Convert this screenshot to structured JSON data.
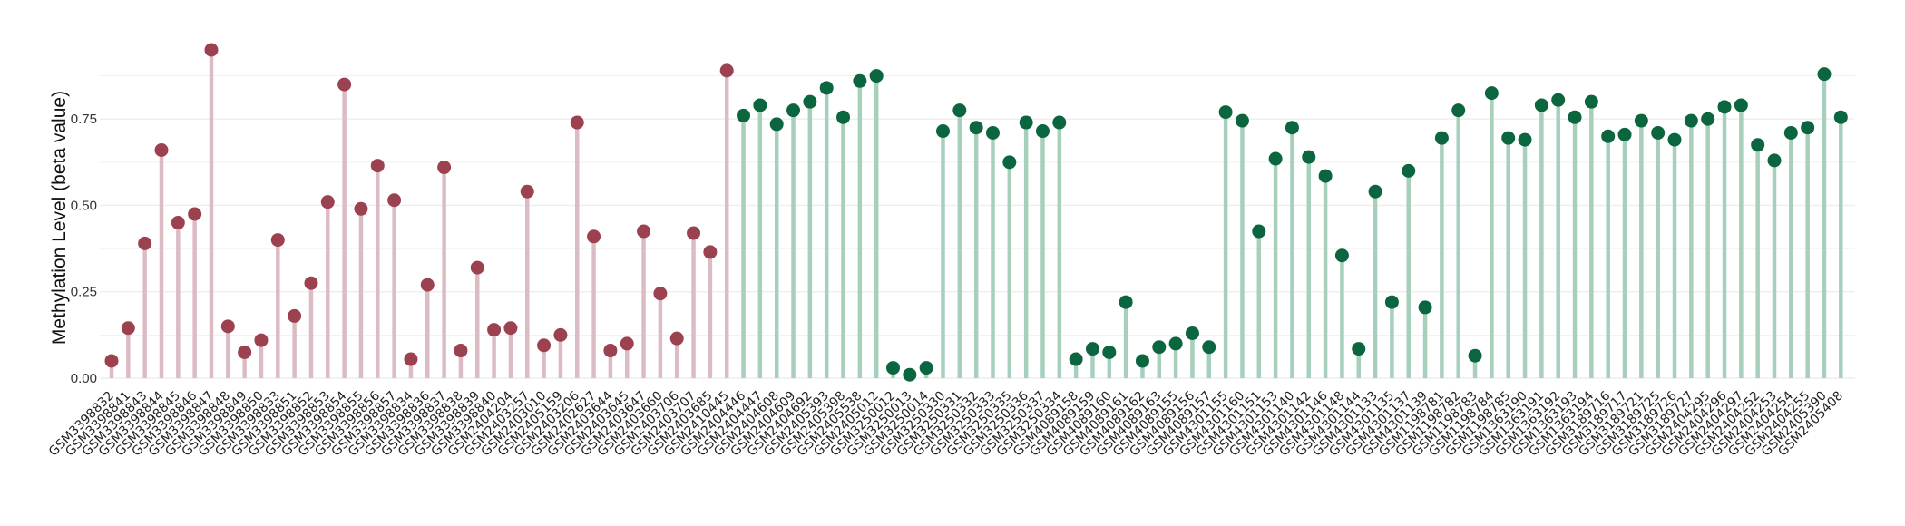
{
  "chart_data": {
    "type": "lollipop",
    "title": "",
    "xlabel": "",
    "ylabel": "Methylation Level (beta value)",
    "ylim": [
      0,
      0.95
    ],
    "yticks": [
      "0.00",
      "0.25",
      "0.50",
      "0.75"
    ],
    "grid": true,
    "colors": {
      "group1": "#9b4150",
      "group1_stem": "#dcbcc4",
      "group2": "#0b6640",
      "group2_stem": "#a6cfbc",
      "grid": "#eeeeee"
    },
    "points": [
      {
        "label": "GSM3398832",
        "value": 0.05,
        "group": 1
      },
      {
        "label": "GSM3398841",
        "value": 0.145,
        "group": 1
      },
      {
        "label": "GSM3398843",
        "value": 0.39,
        "group": 1
      },
      {
        "label": "GSM3398844",
        "value": 0.66,
        "group": 1
      },
      {
        "label": "GSM3398845",
        "value": 0.45,
        "group": 1
      },
      {
        "label": "GSM3398846",
        "value": 0.475,
        "group": 1
      },
      {
        "label": "GSM3398847",
        "value": 0.95,
        "group": 1
      },
      {
        "label": "GSM3398848",
        "value": 0.15,
        "group": 1
      },
      {
        "label": "GSM3398849",
        "value": 0.075,
        "group": 1
      },
      {
        "label": "GSM3398850",
        "value": 0.11,
        "group": 1
      },
      {
        "label": "GSM3398833",
        "value": 0.4,
        "group": 1
      },
      {
        "label": "GSM3398851",
        "value": 0.18,
        "group": 1
      },
      {
        "label": "GSM3398852",
        "value": 0.275,
        "group": 1
      },
      {
        "label": "GSM3398853",
        "value": 0.51,
        "group": 1
      },
      {
        "label": "GSM3398854",
        "value": 0.85,
        "group": 1
      },
      {
        "label": "GSM3398855",
        "value": 0.49,
        "group": 1
      },
      {
        "label": "GSM3398856",
        "value": 0.615,
        "group": 1
      },
      {
        "label": "GSM3398857",
        "value": 0.515,
        "group": 1
      },
      {
        "label": "GSM3398834",
        "value": 0.055,
        "group": 1
      },
      {
        "label": "GSM3398836",
        "value": 0.27,
        "group": 1
      },
      {
        "label": "GSM3398837",
        "value": 0.61,
        "group": 1
      },
      {
        "label": "GSM3398838",
        "value": 0.08,
        "group": 1
      },
      {
        "label": "GSM3398839",
        "value": 0.32,
        "group": 1
      },
      {
        "label": "GSM3398840",
        "value": 0.14,
        "group": 1
      },
      {
        "label": "GSM2404204",
        "value": 0.145,
        "group": 1
      },
      {
        "label": "GSM2403257",
        "value": 0.54,
        "group": 1
      },
      {
        "label": "GSM2403010",
        "value": 0.095,
        "group": 1
      },
      {
        "label": "GSM2405159",
        "value": 0.125,
        "group": 1
      },
      {
        "label": "GSM2403206",
        "value": 0.74,
        "group": 1
      },
      {
        "label": "GSM2402627",
        "value": 0.41,
        "group": 1
      },
      {
        "label": "GSM2403644",
        "value": 0.08,
        "group": 1
      },
      {
        "label": "GSM2403645",
        "value": 0.1,
        "group": 1
      },
      {
        "label": "GSM2403647",
        "value": 0.425,
        "group": 1
      },
      {
        "label": "GSM2403660",
        "value": 0.245,
        "group": 1
      },
      {
        "label": "GSM2403706",
        "value": 0.115,
        "group": 1
      },
      {
        "label": "GSM2403707",
        "value": 0.42,
        "group": 1
      },
      {
        "label": "GSM2403685",
        "value": 0.365,
        "group": 1
      },
      {
        "label": "GSM2410445",
        "value": 0.89,
        "group": 1
      },
      {
        "label": "GSM2404446",
        "value": 0.76,
        "group": 2
      },
      {
        "label": "GSM2404447",
        "value": 0.79,
        "group": 2
      },
      {
        "label": "GSM2404608",
        "value": 0.735,
        "group": 2
      },
      {
        "label": "GSM2404609",
        "value": 0.775,
        "group": 2
      },
      {
        "label": "GSM2404692",
        "value": 0.8,
        "group": 2
      },
      {
        "label": "GSM2405393",
        "value": 0.84,
        "group": 2
      },
      {
        "label": "GSM2405398",
        "value": 0.755,
        "group": 2
      },
      {
        "label": "GSM2405538",
        "value": 0.86,
        "group": 2
      },
      {
        "label": "GSM2405012",
        "value": 0.875,
        "group": 2
      },
      {
        "label": "GSM3250012",
        "value": 0.03,
        "group": 2
      },
      {
        "label": "GSM3250013",
        "value": 0.01,
        "group": 2
      },
      {
        "label": "GSM3250014",
        "value": 0.03,
        "group": 2
      },
      {
        "label": "GSM3250330",
        "value": 0.715,
        "group": 2
      },
      {
        "label": "GSM3250331",
        "value": 0.775,
        "group": 2
      },
      {
        "label": "GSM3250332",
        "value": 0.725,
        "group": 2
      },
      {
        "label": "GSM3250333",
        "value": 0.71,
        "group": 2
      },
      {
        "label": "GSM3250335",
        "value": 0.625,
        "group": 2
      },
      {
        "label": "GSM3250336",
        "value": 0.74,
        "group": 2
      },
      {
        "label": "GSM3250337",
        "value": 0.715,
        "group": 2
      },
      {
        "label": "GSM3250334",
        "value": 0.74,
        "group": 2
      },
      {
        "label": "GSM4089158",
        "value": 0.055,
        "group": 2
      },
      {
        "label": "GSM4089159",
        "value": 0.085,
        "group": 2
      },
      {
        "label": "GSM4089160",
        "value": 0.075,
        "group": 2
      },
      {
        "label": "GSM4089161",
        "value": 0.22,
        "group": 2
      },
      {
        "label": "GSM4089162",
        "value": 0.05,
        "group": 2
      },
      {
        "label": "GSM4089163",
        "value": 0.09,
        "group": 2
      },
      {
        "label": "GSM4089155",
        "value": 0.1,
        "group": 2
      },
      {
        "label": "GSM4089156",
        "value": 0.13,
        "group": 2
      },
      {
        "label": "GSM4089157",
        "value": 0.09,
        "group": 2
      },
      {
        "label": "GSM4301155",
        "value": 0.77,
        "group": 2
      },
      {
        "label": "GSM4301160",
        "value": 0.745,
        "group": 2
      },
      {
        "label": "GSM4301151",
        "value": 0.425,
        "group": 2
      },
      {
        "label": "GSM4301153",
        "value": 0.635,
        "group": 2
      },
      {
        "label": "GSM4301140",
        "value": 0.725,
        "group": 2
      },
      {
        "label": "GSM4301142",
        "value": 0.64,
        "group": 2
      },
      {
        "label": "GSM4301146",
        "value": 0.585,
        "group": 2
      },
      {
        "label": "GSM4301148",
        "value": 0.355,
        "group": 2
      },
      {
        "label": "GSM4301144",
        "value": 0.085,
        "group": 2
      },
      {
        "label": "GSM4301133",
        "value": 0.54,
        "group": 2
      },
      {
        "label": "GSM4301135",
        "value": 0.22,
        "group": 2
      },
      {
        "label": "GSM4301137",
        "value": 0.6,
        "group": 2
      },
      {
        "label": "GSM4301139",
        "value": 0.205,
        "group": 2
      },
      {
        "label": "GSM1198781",
        "value": 0.695,
        "group": 2
      },
      {
        "label": "GSM1198782",
        "value": 0.775,
        "group": 2
      },
      {
        "label": "GSM1198783",
        "value": 0.065,
        "group": 2
      },
      {
        "label": "GSM1198784",
        "value": 0.825,
        "group": 2
      },
      {
        "label": "GSM1198785",
        "value": 0.695,
        "group": 2
      },
      {
        "label": "GSM1363190",
        "value": 0.69,
        "group": 2
      },
      {
        "label": "GSM1363191",
        "value": 0.79,
        "group": 2
      },
      {
        "label": "GSM1363192",
        "value": 0.805,
        "group": 2
      },
      {
        "label": "GSM1363193",
        "value": 0.755,
        "group": 2
      },
      {
        "label": "GSM1363194",
        "value": 0.8,
        "group": 2
      },
      {
        "label": "GSM3189716",
        "value": 0.7,
        "group": 2
      },
      {
        "label": "GSM3189717",
        "value": 0.705,
        "group": 2
      },
      {
        "label": "GSM3189721",
        "value": 0.745,
        "group": 2
      },
      {
        "label": "GSM3189725",
        "value": 0.71,
        "group": 2
      },
      {
        "label": "GSM3189726",
        "value": 0.69,
        "group": 2
      },
      {
        "label": "GSM3189727",
        "value": 0.745,
        "group": 2
      },
      {
        "label": "GSM2404295",
        "value": 0.75,
        "group": 2
      },
      {
        "label": "GSM2404296",
        "value": 0.785,
        "group": 2
      },
      {
        "label": "GSM2404297",
        "value": 0.79,
        "group": 2
      },
      {
        "label": "GSM2404252",
        "value": 0.675,
        "group": 2
      },
      {
        "label": "GSM2404253",
        "value": 0.63,
        "group": 2
      },
      {
        "label": "GSM2404254",
        "value": 0.71,
        "group": 2
      },
      {
        "label": "GSM2404255",
        "value": 0.725,
        "group": 2
      },
      {
        "label": "GSM2405390",
        "value": 0.88,
        "group": 2
      },
      {
        "label": "GSM2405408",
        "value": 0.755,
        "group": 2
      }
    ]
  }
}
